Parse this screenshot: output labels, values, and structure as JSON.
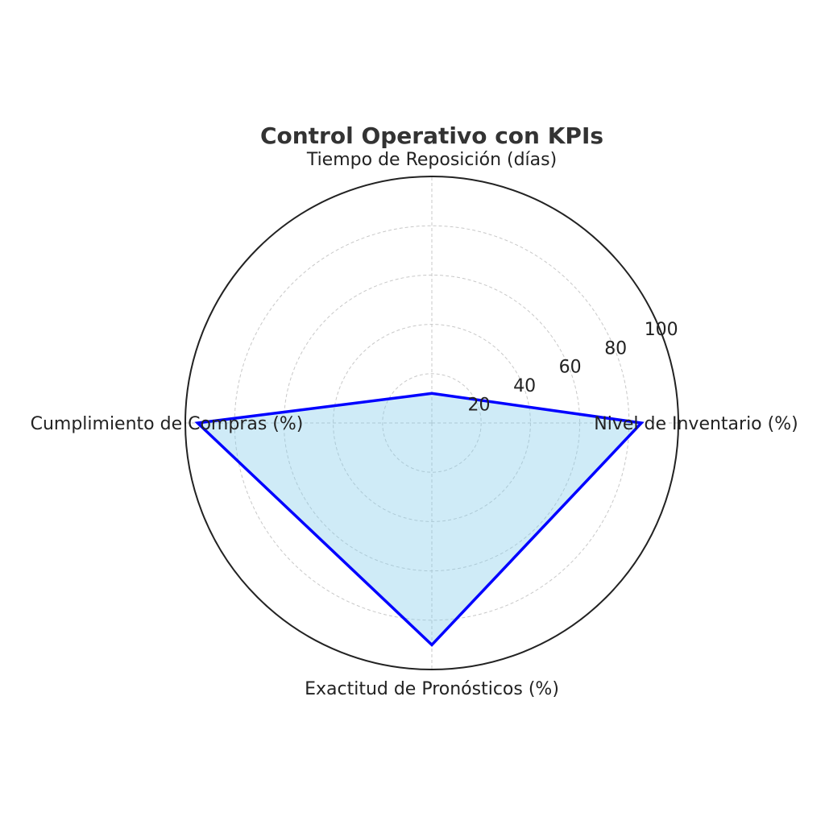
{
  "chart_data": {
    "type": "radar",
    "title": "Control Operativo con KPIs",
    "axes": [
      "Nivel de Inventario (%)",
      "Tiempo de Reposición (días)",
      "Cumplimiento de Compras (%)",
      "Exactitud de Pronósticos (%)"
    ],
    "series": [
      {
        "values": [
          85,
          12,
          95,
          90
        ]
      }
    ],
    "rlim": [
      0,
      100
    ],
    "rticks": [
      20,
      40,
      60,
      80,
      100
    ],
    "grid": true,
    "colors": {
      "line": "#0000ff",
      "fill": "#87ceeb"
    }
  }
}
